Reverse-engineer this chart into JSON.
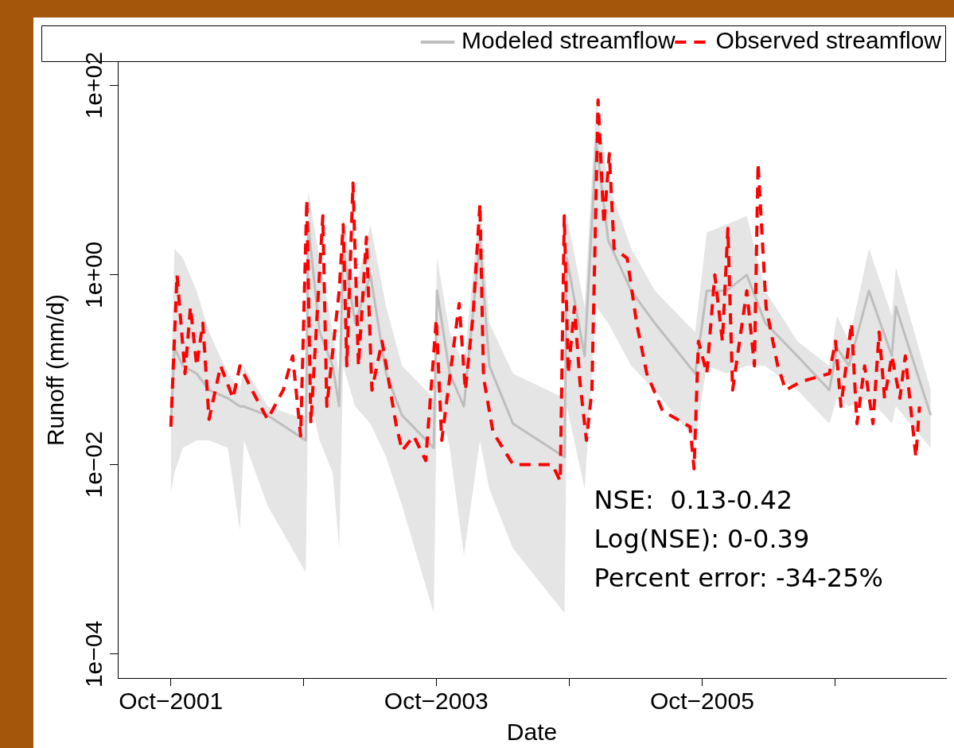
{
  "chart_data": {
    "type": "line",
    "xlabel": "Date",
    "ylabel": "Runoff (mm/d)",
    "log": "y",
    "legend": "top right",
    "grid": false,
    "marker": "none",
    "xlim": [
      "2001-05-08",
      "2007-08-03"
    ],
    "xticks": [
      {
        "value": "2001-10-01",
        "label": "Oct−2001"
      },
      {
        "value": "2002-10-01",
        "label": null
      },
      {
        "value": "2003-10-01",
        "label": "Oct−2003"
      },
      {
        "value": "2004-10-01",
        "label": null
      },
      {
        "value": "2005-10-01",
        "label": "Oct−2005"
      },
      {
        "value": "2006-10-01",
        "label": null
      }
    ],
    "ylim": [
      5.6e-05,
      176
    ],
    "yticks": [
      {
        "value": 100,
        "label": "1e+02"
      },
      {
        "value": 1,
        "label": "1e+00"
      },
      {
        "value": 0.01,
        "label": "1e−02"
      },
      {
        "value": 0.0001,
        "label": "1e−04"
      }
    ],
    "series": [
      {
        "name": "Modeled streamflow",
        "color": "#bebebe",
        "line_style": "solid",
        "x": [
          "2001-10-01",
          "2001-10-11",
          "2001-11-03",
          "2001-12-11",
          "2002-01-14",
          "2002-03-07",
          "2002-04-09",
          "2002-04-20",
          "2002-06-24",
          "2002-10-07",
          "2002-10-14",
          "2002-11-14",
          "2002-12-20",
          "2003-01-07",
          "2003-01-18",
          "2003-02-20",
          "2003-04-03",
          "2003-05-16",
          "2003-06-29",
          "2003-09-24",
          "2003-10-03",
          "2003-11-07",
          "2003-12-16",
          "2004-01-29",
          "2004-02-24",
          "2004-04-29",
          "2004-09-18",
          "2004-09-24",
          "2004-11-12",
          "2004-12-14",
          "2005-01-16",
          "2005-03-20",
          "2005-05-24",
          "2005-09-12",
          "2005-10-14",
          "2005-12-07",
          "2006-02-01",
          "2006-03-24",
          "2006-06-20",
          "2006-09-16",
          "2006-10-07",
          "2006-11-09",
          "2007-01-03",
          "2007-03-07",
          "2007-03-18",
          "2007-06-22"
        ],
        "values": [
          0.027,
          0.17,
          0.11,
          0.091,
          0.061,
          0.05,
          0.041,
          0.041,
          0.033,
          0.018,
          3.4,
          0.25,
          0.11,
          0.041,
          1.9,
          0.31,
          1.0,
          0.091,
          0.033,
          0.015,
          0.68,
          0.091,
          0.041,
          2.3,
          0.11,
          0.027,
          0.012,
          1.5,
          0.14,
          25,
          2.3,
          0.68,
          0.31,
          0.091,
          0.68,
          0.68,
          1.0,
          0.31,
          0.14,
          0.061,
          0.17,
          0.11,
          0.68,
          0.14,
          0.46,
          0.033
        ],
        "lower": [
          0.0049,
          0.0082,
          0.015,
          0.018,
          0.018,
          0.015,
          0.002,
          0.018,
          0.0037,
          0.00073,
          0.061,
          0.018,
          0.0082,
          0.0013,
          0.11,
          0.041,
          0.027,
          0.012,
          0.0037,
          0.00027,
          0.061,
          0.015,
          0.0011,
          0.018,
          0.0055,
          0.0013,
          0.00027,
          0.041,
          0.0055,
          0.46,
          0.31,
          0.11,
          0.061,
          0.018,
          0.11,
          0.091,
          0.11,
          0.11,
          0.061,
          0.027,
          0.05,
          0.041,
          0.05,
          0.027,
          0.041,
          0.015
        ],
        "upper": [
          0.061,
          1.9,
          1.5,
          0.68,
          0.25,
          0.091,
          0.061,
          0.11,
          0.041,
          0.03,
          7.6,
          1.5,
          0.25,
          0.091,
          4.2,
          0.68,
          3.4,
          0.46,
          0.11,
          0.05,
          1.5,
          0.25,
          0.11,
          5.6,
          0.31,
          0.091,
          0.05,
          4.2,
          0.46,
          70,
          9.3,
          1.9,
          0.68,
          0.25,
          2.8,
          3.4,
          4.2,
          0.68,
          0.2,
          0.11,
          0.37,
          0.2,
          1.9,
          0.37,
          1.2,
          0.061
        ]
      },
      {
        "name": "Observed streamflow",
        "color": "#ff0000",
        "line_style": "dashed",
        "x": [
          "2001-10-01",
          "2001-10-18",
          "2001-11-09",
          "2001-11-24",
          "2001-12-11",
          "2001-12-28",
          "2002-01-14",
          "2002-02-15",
          "2002-03-21",
          "2002-04-09",
          "2002-05-12",
          "2002-06-24",
          "2002-08-06",
          "2002-09-01",
          "2002-09-23",
          "2002-10-10",
          "2002-10-21",
          "2002-11-23",
          "2002-12-04",
          "2003-01-07",
          "2003-01-18",
          "2003-01-28",
          "2003-02-14",
          "2003-03-01",
          "2003-03-23",
          "2003-04-07",
          "2003-05-05",
          "2003-06-12",
          "2003-06-29",
          "2003-07-31",
          "2003-09-02",
          "2003-10-01",
          "2003-10-16",
          "2003-12-03",
          "2003-12-20",
          "2004-01-10",
          "2004-01-29",
          "2004-02-08",
          "2004-03-05",
          "2004-04-29",
          "2004-08-15",
          "2004-09-06",
          "2004-09-17",
          "2004-09-28",
          "2004-10-15",
          "2004-10-30",
          "2004-11-17",
          "2004-12-02",
          "2004-12-19",
          "2005-01-04",
          "2005-01-19",
          "2005-02-01",
          "2005-03-09",
          "2005-04-04",
          "2005-05-02",
          "2005-06-14",
          "2005-08-29",
          "2005-09-09",
          "2005-09-21",
          "2005-10-14",
          "2005-11-05",
          "2005-11-26",
          "2005-12-11",
          "2005-12-24",
          "2006-02-01",
          "2006-02-22",
          "2006-03-04",
          "2006-03-26",
          "2006-04-27",
          "2006-05-19",
          "2006-07-01",
          "2006-09-16",
          "2006-10-03",
          "2006-10-18",
          "2006-11-16",
          "2006-12-01",
          "2006-12-22",
          "2007-01-14",
          "2007-01-31",
          "2007-02-15",
          "2007-03-07",
          "2007-03-29",
          "2007-04-13",
          "2007-05-12",
          "2007-05-22"
        ],
        "values": [
          0.025,
          1.0,
          0.091,
          0.46,
          0.11,
          0.31,
          0.03,
          0.11,
          0.05,
          0.11,
          0.061,
          0.03,
          0.061,
          0.14,
          0.02,
          6.2,
          0.027,
          4.2,
          0.041,
          0.68,
          3.4,
          0.11,
          9.3,
          0.11,
          2.5,
          0.061,
          0.2,
          0.027,
          0.014,
          0.02,
          0.011,
          0.34,
          0.018,
          0.5,
          0.061,
          0.37,
          5.6,
          0.083,
          0.022,
          0.01,
          0.01,
          0.0067,
          4.2,
          0.091,
          0.46,
          0.075,
          0.018,
          0.061,
          70,
          3.4,
          19,
          1.9,
          1.5,
          0.31,
          0.091,
          0.037,
          0.025,
          0.009,
          0.2,
          0.091,
          1.0,
          0.2,
          3.1,
          0.061,
          0.68,
          0.11,
          15,
          0.46,
          0.11,
          0.061,
          0.075,
          0.091,
          0.2,
          0.041,
          0.31,
          0.027,
          0.11,
          0.027,
          0.25,
          0.05,
          0.14,
          0.05,
          0.14,
          0.012,
          0.041
        ]
      }
    ],
    "annotations": [
      "NSE:  0.13-0.42",
      "Log(NSE): 0-0.39",
      "Percent error: -34-25%"
    ]
  }
}
